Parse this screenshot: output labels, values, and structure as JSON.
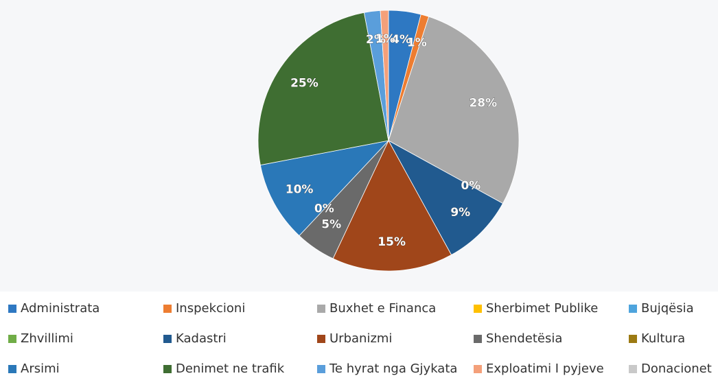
{
  "chart_data": {
    "type": "pie",
    "categories": [
      "Administrata",
      "Inspekcioni",
      "Buxhet e Financa",
      "Sherbimet Publike",
      "Bujqësia",
      "Zhvillimi",
      "Kadastri",
      "Urbanizmi",
      "Shendetësia",
      "Kultura",
      "Arsimi",
      "Denimet ne trafik",
      "Te hyrat nga Gjykata",
      "Exploatimi I pyjeve",
      "Donacionet"
    ],
    "values": [
      4,
      1,
      28,
      0,
      0,
      0,
      9,
      15,
      5,
      0,
      10,
      25,
      2,
      1,
      0
    ],
    "value_labels": [
      "4%",
      "1%",
      "28%",
      "0%",
      null,
      null,
      "9%",
      "15%",
      "5%",
      "0%",
      "10%",
      "25%",
      "2%",
      "1%",
      null
    ],
    "colors": [
      "#2e78c2",
      "#ed7d31",
      "#a9a9a9",
      "#ffc000",
      "#4ea4dd",
      "#70ad47",
      "#215a8f",
      "#a0461a",
      "#6a6a6a",
      "#9c7a12",
      "#2a78b8",
      "#3f6e32",
      "#5a9edb",
      "#f4a07a",
      "#c9c9c9"
    ],
    "legend": "bottom"
  }
}
